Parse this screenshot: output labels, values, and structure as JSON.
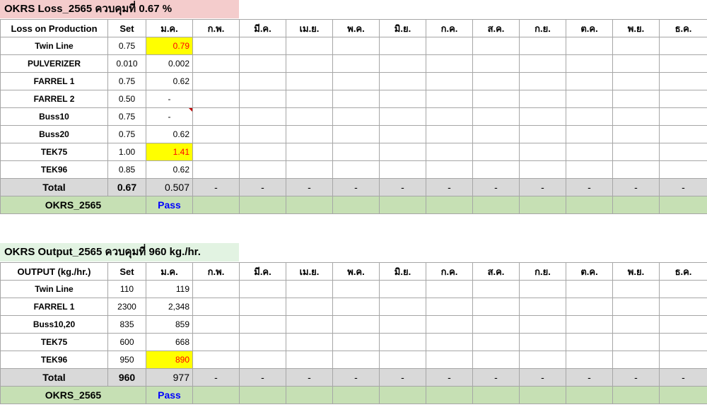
{
  "loss": {
    "title": "OKRS Loss_2565 ควบคุมที่ 0.67 %",
    "header": [
      "Loss on Production",
      "Set",
      "ม.ค.",
      "ก.พ.",
      "มี.ค.",
      "เม.ย.",
      "พ.ค.",
      "มิ.ย.",
      "ก.ค.",
      "ส.ค.",
      "ก.ย.",
      "ต.ค.",
      "พ.ย.",
      "ธ.ค."
    ],
    "rows": [
      {
        "name": "Twin Line",
        "set": "0.75",
        "jan": "0.79"
      },
      {
        "name": "PULVERIZER",
        "set": "0.010",
        "jan": "0.002"
      },
      {
        "name": "FARREL 1",
        "set": "0.75",
        "jan": "0.62"
      },
      {
        "name": "FARREL 2",
        "set": "0.50",
        "jan": "-"
      },
      {
        "name": "Buss10",
        "set": "0.75",
        "jan": "-"
      },
      {
        "name": "Buss20",
        "set": "0.75",
        "jan": "0.62"
      },
      {
        "name": "TEK75",
        "set": "1.00",
        "jan": "1.41"
      },
      {
        "name": "TEK96",
        "set": "0.85",
        "jan": "0.62"
      }
    ],
    "total": {
      "label": "Total",
      "set": "0.67",
      "jan": "0.507",
      "rest": "-"
    },
    "okrs": {
      "label": "OKRS_2565",
      "status": "Pass"
    }
  },
  "output": {
    "title": "OKRS Output_2565 ควบคุมที่ 960 kg./hr.",
    "header": [
      "OUTPUT (kg./hr.)",
      "Set",
      "ม.ค.",
      "ก.พ.",
      "มี.ค.",
      "เม.ย.",
      "พ.ค.",
      "มิ.ย.",
      "ก.ค.",
      "ส.ค.",
      "ก.ย.",
      "ต.ค.",
      "พ.ย.",
      "ธ.ค."
    ],
    "rows": [
      {
        "name": "Twin Line",
        "set": "110",
        "jan": "119"
      },
      {
        "name": "FARREL 1",
        "set": "2300",
        "jan": "2,348"
      },
      {
        "name": "Buss10,20",
        "set": "835",
        "jan": "859"
      },
      {
        "name": "TEK75",
        "set": "600",
        "jan": "668"
      },
      {
        "name": "TEK96",
        "set": "950",
        "jan": "890"
      }
    ],
    "total": {
      "label": "Total",
      "set": "960",
      "jan": "977",
      "rest": "-"
    },
    "okrs": {
      "label": "OKRS_2565",
      "status": "Pass"
    }
  },
  "colors": {
    "highlight": "#ffff00",
    "alert_text": "#ff0000",
    "pass_text": "#0000ff",
    "okrs_row": "#c6e0b4",
    "total_row": "#d9d9d9",
    "loss_title_bg": "#f4cccc",
    "output_title_bg": "#e2f3e2"
  }
}
